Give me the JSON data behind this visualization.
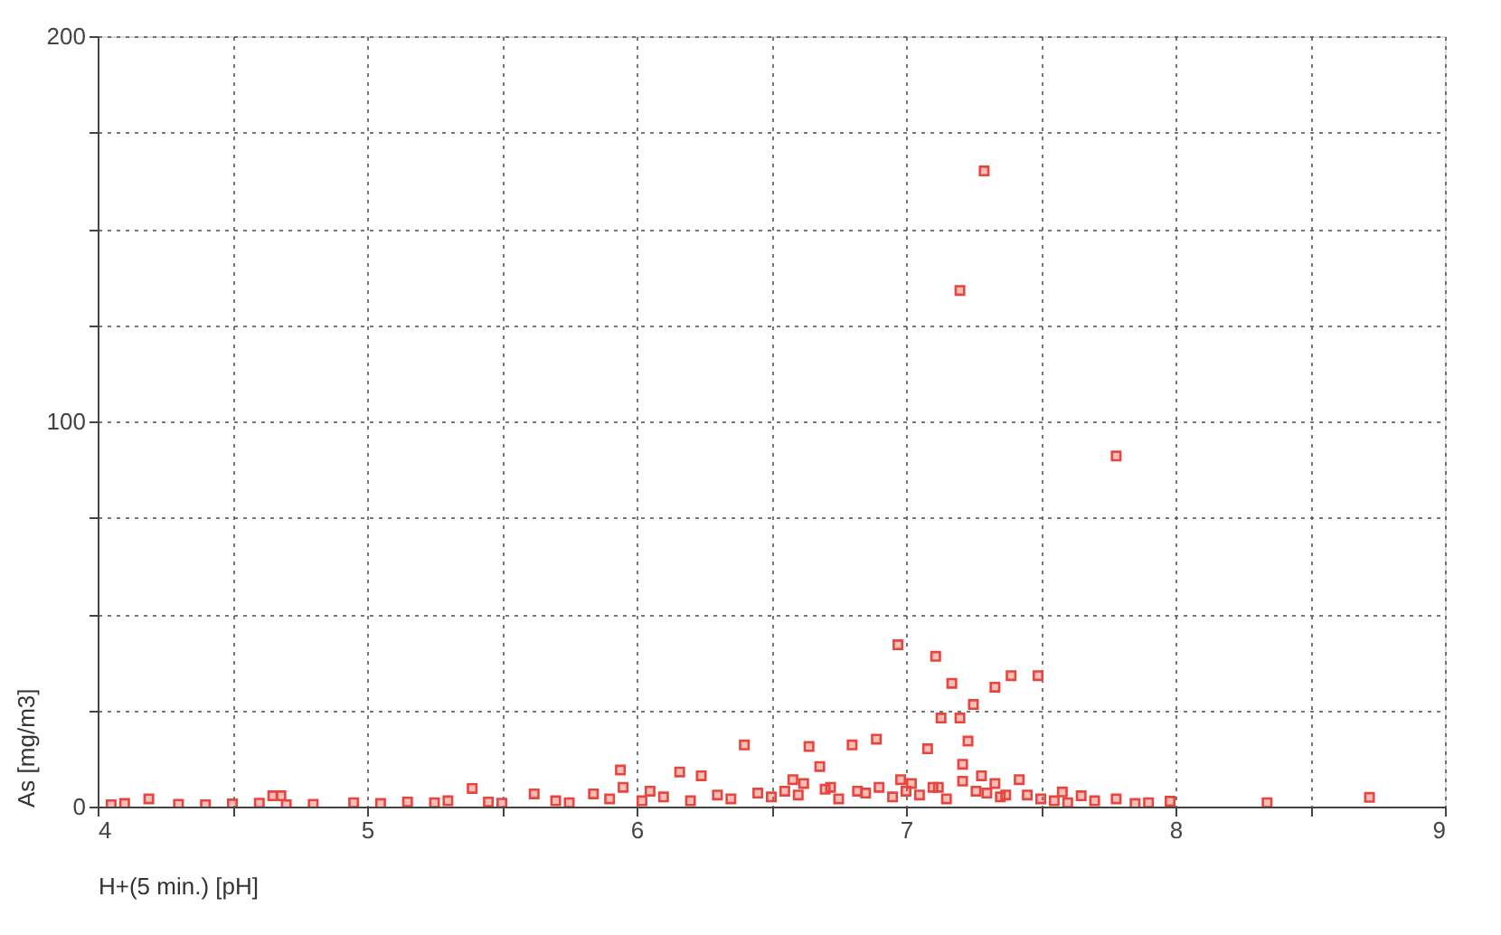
{
  "chart_data": {
    "type": "scatter",
    "xlabel": "H+(5 min.) [pH]",
    "ylabel": "As [mg/m3]",
    "xlim": [
      4,
      9
    ],
    "ylim": [
      0,
      200
    ],
    "xticks": [
      4,
      {
        "value": 4.5,
        "label": null
      },
      5,
      {
        "value": 5.5,
        "label": null
      },
      6,
      {
        "value": 6.5,
        "label": null
      },
      7,
      {
        "value": 7.5,
        "label": null
      },
      8,
      {
        "value": 8.5,
        "label": null
      },
      9
    ],
    "yticks": [
      0,
      {
        "value": 25,
        "label": null
      },
      {
        "value": 50,
        "label": null
      },
      {
        "value": 75,
        "label": null
      },
      100,
      {
        "value": 125,
        "label": null
      },
      {
        "value": 150,
        "label": null
      },
      {
        "value": 175,
        "label": null
      },
      200
    ],
    "grid": true,
    "marker": "square",
    "series": [
      {
        "color": "#e8453c",
        "x": [
          7.29,
          7.2,
          7.78,
          6.97,
          7.11,
          7.17,
          7.39,
          7.49,
          7.33,
          7.25,
          7.13,
          7.2,
          6.4,
          6.64,
          6.8,
          6.89,
          7.08,
          6.68,
          6.58,
          6.24,
          6.16,
          7.21,
          7.23,
          7.28,
          7.33,
          7.42,
          7.21,
          5.94,
          5.39,
          4.65,
          4.19,
          5.62,
          5.84,
          5.95,
          7.58,
          7.65,
          7.78,
          8.72,
          8.34,
          7.98,
          4.05,
          4.1,
          4.3,
          4.4,
          4.5,
          4.6,
          4.7,
          4.8,
          4.95,
          5.05,
          5.15,
          5.25,
          5.3,
          5.45,
          5.5,
          5.7,
          5.75,
          5.9,
          6.02,
          6.1,
          6.2,
          6.3,
          6.35,
          6.45,
          6.5,
          6.55,
          6.6,
          6.7,
          6.75,
          6.85,
          6.9,
          6.95,
          7.0,
          7.05,
          7.1,
          7.15,
          7.3,
          7.35,
          7.45,
          7.5,
          7.55,
          7.6,
          7.7,
          7.85,
          7.9,
          4.68,
          6.05,
          6.62,
          6.72,
          6.82,
          6.98,
          7.02,
          7.12,
          7.26,
          7.37
        ],
        "values": [
          165,
          134,
          91,
          42,
          39,
          32,
          34,
          34,
          31,
          26.5,
          23,
          23,
          16,
          15.6,
          16,
          17.5,
          15,
          10.4,
          7,
          8,
          9,
          11,
          17,
          8,
          6,
          7,
          6.6,
          9.5,
          4.7,
          2.8,
          2,
          3.3,
          3.3,
          5,
          3.8,
          2.8,
          2,
          2.4,
          1,
          1.4,
          0.5,
          0.8,
          0.6,
          0.5,
          0.7,
          0.9,
          0.5,
          0.6,
          1,
          0.8,
          1.2,
          1,
          1.5,
          1.2,
          0.9,
          1.5,
          1,
          2,
          1.5,
          2.5,
          1.5,
          3,
          2,
          3.5,
          2.5,
          4,
          3,
          4.5,
          2,
          3.5,
          5,
          2.5,
          4,
          3,
          5,
          2,
          3.5,
          2.5,
          3,
          2,
          1.5,
          1,
          1.5,
          0.8,
          1,
          2.8,
          4,
          6,
          5,
          4,
          7,
          6,
          5,
          4,
          3
        ]
      }
    ]
  }
}
